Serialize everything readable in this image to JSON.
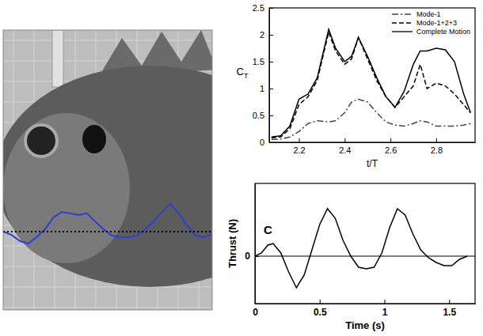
{
  "chart_data": [
    {
      "type": "line",
      "tick_labels": false,
      "xlim": [
        0,
        100
      ],
      "ylim": [
        0,
        100
      ],
      "x": [
        0,
        4,
        8,
        12,
        16,
        20,
        24,
        28,
        32,
        36,
        40,
        44,
        48,
        52,
        56,
        60,
        64,
        68,
        72,
        76,
        80,
        84,
        88,
        92,
        96,
        100
      ],
      "series": [
        {
          "color": "#2b3fd6",
          "line_style": "solid",
          "values": [
            28,
            26.8,
            24.6,
            23.7,
            26,
            28.8,
            33,
            35,
            34.5,
            33.9,
            34.5,
            31.6,
            28.8,
            26.6,
            26,
            26,
            26.6,
            28.8,
            31.6,
            35,
            37.9,
            34.5,
            30.2,
            26.6,
            26,
            27.1
          ]
        },
        {
          "color": "#000000",
          "line_style": "dotted",
          "values": [
            28,
            28,
            28,
            28,
            28,
            28,
            28,
            28,
            28,
            28,
            28,
            28,
            28,
            28,
            28,
            28,
            28,
            28,
            28,
            28,
            28,
            28,
            28,
            28,
            28,
            28
          ]
        }
      ]
    },
    {
      "type": "line",
      "x_label": "t/T",
      "y_label": "CT",
      "xlim": [
        2.07,
        2.97
      ],
      "ylim": [
        0,
        2.5
      ],
      "xticks": [
        2.2,
        2.4,
        2.6,
        2.8
      ],
      "yticks": [
        0,
        0.5,
        1,
        1.5,
        2,
        2.5
      ],
      "legend": "upper right",
      "grid": false,
      "x": [
        2.08,
        2.12,
        2.16,
        2.2,
        2.24,
        2.28,
        2.33,
        2.36,
        2.4,
        2.43,
        2.46,
        2.5,
        2.54,
        2.58,
        2.62,
        2.66,
        2.7,
        2.73,
        2.76,
        2.8,
        2.84,
        2.88,
        2.92,
        2.95
      ],
      "series": [
        {
          "name": "Mode-1",
          "color": "#444444",
          "line_style": "dashdot",
          "values": [
            0.05,
            0.06,
            0.1,
            0.2,
            0.35,
            0.4,
            0.38,
            0.4,
            0.55,
            0.75,
            0.8,
            0.75,
            0.55,
            0.38,
            0.32,
            0.3,
            0.35,
            0.4,
            0.38,
            0.3,
            0.3,
            0.3,
            0.32,
            0.35
          ]
        },
        {
          "name": "Mode-1+2+3",
          "color": "#000000",
          "line_style": "dashed",
          "values": [
            0.08,
            0.1,
            0.25,
            0.7,
            0.85,
            1.15,
            2.05,
            1.7,
            1.45,
            1.55,
            1.95,
            1.55,
            1.15,
            0.85,
            0.65,
            0.85,
            1.05,
            1.45,
            1.0,
            1.1,
            1.05,
            0.9,
            0.7,
            0.55
          ]
        },
        {
          "name": "Complete Motion",
          "color": "#000000",
          "line_style": "solid",
          "values": [
            0.1,
            0.12,
            0.3,
            0.8,
            0.9,
            1.2,
            2.1,
            1.75,
            1.5,
            1.6,
            1.95,
            1.6,
            1.2,
            0.85,
            0.65,
            0.95,
            1.45,
            1.7,
            1.7,
            1.75,
            1.72,
            1.5,
            0.9,
            0.55
          ]
        }
      ]
    },
    {
      "type": "line",
      "x_label": "Time (s)",
      "y_label": "Thrust (N)",
      "xlim": [
        0,
        1.7
      ],
      "ylim": [
        -1.5,
        2.3
      ],
      "xticks": [
        0,
        0.5,
        1,
        1.5
      ],
      "yticks": [
        0
      ],
      "grid": true,
      "annotations": [
        {
          "text": "C",
          "x": 0.1,
          "y": 0.7
        }
      ],
      "x": [
        0,
        0.05,
        0.1,
        0.14,
        0.2,
        0.26,
        0.32,
        0.38,
        0.44,
        0.5,
        0.56,
        0.62,
        0.68,
        0.74,
        0.8,
        0.86,
        0.92,
        0.98,
        1.04,
        1.1,
        1.16,
        1.22,
        1.28,
        1.34,
        1.4,
        1.46,
        1.52,
        1.58,
        1.64
      ],
      "series": [
        {
          "color": "#000000",
          "line_style": "solid",
          "values": [
            0,
            0.1,
            0.35,
            0.4,
            0.1,
            -0.5,
            -1.0,
            -0.6,
            0.2,
            1.0,
            1.5,
            1.2,
            0.5,
            0.0,
            -0.35,
            -0.4,
            -0.35,
            0.1,
            0.9,
            1.5,
            1.3,
            0.7,
            0.2,
            -0.05,
            -0.2,
            -0.3,
            -0.3,
            -0.1,
            0.0
          ]
        }
      ]
    }
  ]
}
